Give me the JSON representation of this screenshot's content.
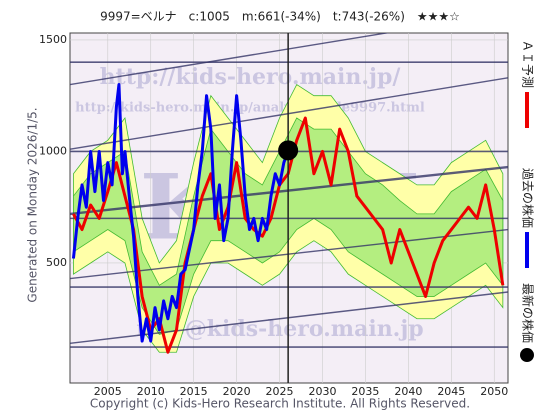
{
  "chart_data": {
    "type": "line",
    "title": "9997=ベルナ　c:1005　m:661(-34%)　t:743(-26%)　★★★☆",
    "left_note": "Generated on Monday 2026/1/5.",
    "footer": "Copyright (c) Kids-Hero Research Institute. All Rights Reserved.",
    "watermarks": [
      "http://kids-hero.main.jp/",
      "http://kids-hero.main.jp/analysis/code9997.html",
      "info@kids-hero.main.jp",
      "KHRI"
    ],
    "xlim": [
      2000.6,
      2051.6
    ],
    "ylim": [
      -38,
      1531
    ],
    "xticks": [
      2005,
      2010,
      2015,
      2020,
      2025,
      2030,
      2035,
      2040,
      2045,
      2050
    ],
    "yticks": [
      500,
      1000,
      1500
    ],
    "grid": true,
    "bands": [
      {
        "color": "#ffffa8",
        "x": [
          2001,
          2003,
          2005,
          2007,
          2009,
          2011,
          2013,
          2015,
          2017,
          2019,
          2021,
          2023,
          2025,
          2027,
          2029,
          2031,
          2033,
          2035,
          2037,
          2039,
          2041,
          2043,
          2045,
          2047,
          2049,
          2051
        ],
        "upper": [
          900,
          1000,
          1050,
          1150,
          700,
          500,
          600,
          950,
          1250,
          1150,
          1050,
          950,
          1150,
          1300,
          1250,
          1250,
          1150,
          1000,
          950,
          900,
          850,
          850,
          950,
          1000,
          1050,
          900
        ],
        "lower": [
          450,
          500,
          550,
          500,
          200,
          100,
          100,
          350,
          500,
          500,
          450,
          400,
          450,
          550,
          600,
          550,
          450,
          400,
          350,
          300,
          250,
          250,
          300,
          350,
          400,
          300
        ]
      },
      {
        "color": "#b4ee80",
        "x": [
          2001,
          2003,
          2005,
          2007,
          2009,
          2011,
          2013,
          2015,
          2017,
          2019,
          2021,
          2023,
          2025,
          2027,
          2029,
          2031,
          2033,
          2035,
          2037,
          2039,
          2041,
          2043,
          2045,
          2047,
          2049,
          2051
        ],
        "upper": [
          800,
          900,
          950,
          1000,
          550,
          400,
          450,
          800,
          1100,
          1000,
          900,
          850,
          1000,
          1150,
          1100,
          1100,
          1000,
          900,
          850,
          780,
          720,
          720,
          820,
          870,
          920,
          780
        ],
        "lower": [
          550,
          600,
          650,
          600,
          300,
          180,
          200,
          450,
          600,
          600,
          550,
          500,
          550,
          650,
          700,
          650,
          550,
          500,
          450,
          400,
          350,
          350,
          400,
          450,
          500,
          400
        ]
      }
    ],
    "hlines": [
      1400,
      1000,
      700,
      392,
      123
    ],
    "trend_lines": [
      {
        "x": [
          2000.6,
          2051.6
        ],
        "values": [
          1300,
          1620
        ]
      },
      {
        "x": [
          2000.6,
          2051.6
        ],
        "values": [
          1010,
          1330
        ]
      },
      {
        "x": [
          2000.6,
          2051.6
        ],
        "values": [
          720,
          930
        ]
      },
      {
        "x": [
          2000.6,
          2051.6
        ],
        "values": [
          430,
          650
        ]
      },
      {
        "x": [
          2000.6,
          2051.6
        ],
        "values": [
          140,
          370
        ]
      }
    ],
    "series": [
      {
        "name": "ＡＩ予測",
        "color": "#ee0000",
        "x": [
          2001,
          2002,
          2003,
          2004,
          2005,
          2006,
          2007,
          2008,
          2009,
          2010,
          2011,
          2012,
          2013,
          2014,
          2015,
          2016,
          2017,
          2018,
          2019,
          2020,
          2021,
          2022,
          2023,
          2024,
          2025,
          2026,
          2027,
          2028,
          2029,
          2030,
          2031,
          2032,
          2033,
          2034,
          2035,
          2036,
          2037,
          2038,
          2039,
          2040,
          2041,
          2042,
          2043,
          2044,
          2045,
          2046,
          2047,
          2048,
          2049,
          2050,
          2051
        ],
        "values": [
          720,
          650,
          760,
          700,
          820,
          950,
          800,
          650,
          350,
          200,
          250,
          100,
          200,
          500,
          650,
          800,
          900,
          650,
          750,
          950,
          700,
          650,
          620,
          700,
          850,
          900,
          1050,
          1150,
          900,
          1000,
          850,
          1100,
          1000,
          800,
          750,
          700,
          650,
          500,
          650,
          550,
          450,
          350,
          500,
          600,
          650,
          700,
          750,
          700,
          850,
          650,
          400
        ]
      },
      {
        "name": "過去の株価",
        "color": "#0000ee",
        "x": [
          2001,
          2001.5,
          2002,
          2002.5,
          2003,
          2003.5,
          2004,
          2004.5,
          2005,
          2005.5,
          2006,
          2006.3,
          2006.7,
          2007,
          2007.5,
          2008,
          2008.5,
          2009,
          2009.5,
          2010,
          2010.5,
          2011,
          2011.5,
          2012,
          2012.5,
          2013,
          2013.5,
          2014,
          2014.5,
          2015,
          2015.5,
          2016,
          2016.5,
          2017,
          2017.5,
          2018,
          2018.5,
          2019,
          2019.5,
          2020,
          2020.5,
          2021,
          2021.5,
          2022,
          2022.5,
          2023,
          2023.5,
          2024,
          2024.5,
          2025,
          2025.5,
          2026
        ],
        "values": [
          520,
          700,
          850,
          750,
          1000,
          820,
          1000,
          780,
          950,
          850,
          1200,
          1300,
          900,
          1000,
          800,
          620,
          350,
          150,
          250,
          150,
          300,
          200,
          330,
          250,
          350,
          300,
          450,
          470,
          560,
          650,
          850,
          1000,
          1250,
          1100,
          700,
          850,
          600,
          700,
          1000,
          1250,
          1050,
          800,
          650,
          700,
          600,
          700,
          650,
          800,
          900,
          850,
          950,
          1005
        ]
      }
    ],
    "latest": {
      "name": "最新の株価",
      "x": 2026,
      "value": 1005,
      "color": "#000000"
    }
  }
}
